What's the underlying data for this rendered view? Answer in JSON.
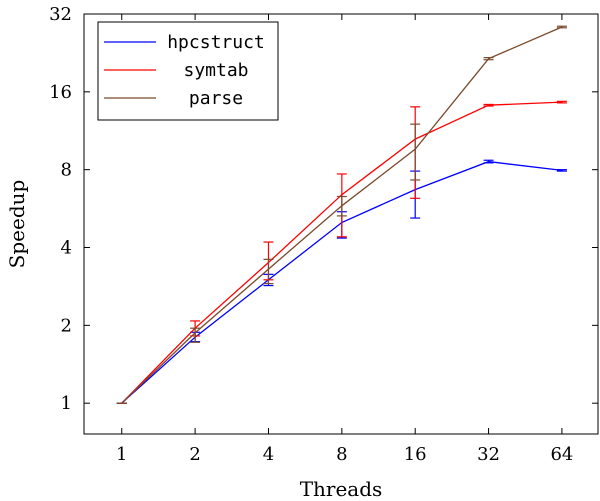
{
  "chart_data": {
    "type": "line",
    "xlabel": "Threads",
    "ylabel": "Speedup",
    "x": [
      1,
      2,
      4,
      8,
      16,
      32,
      64
    ],
    "x_tick_labels": [
      "1",
      "2",
      "4",
      "8",
      "16",
      "32",
      "64"
    ],
    "y_tick_values": [
      1,
      2,
      4,
      8,
      16,
      32
    ],
    "y_tick_labels": [
      "1",
      "2",
      "4",
      "8",
      "16",
      "32"
    ],
    "xscale": "log2",
    "yscale": "log2",
    "xlim": [
      0.7,
      90
    ],
    "ylim": [
      0.76,
      32
    ],
    "grid": false,
    "legend_position": "top-left",
    "series": [
      {
        "name": "hpcstruct",
        "color": "#0000ff",
        "values": [
          1.0,
          1.8,
          3.0,
          5.0,
          6.7,
          8.6,
          7.95
        ],
        "err_low": [
          1.0,
          1.73,
          2.85,
          4.35,
          5.2,
          8.5,
          7.9
        ],
        "err_high": [
          1.0,
          1.88,
          3.15,
          5.5,
          7.9,
          8.7,
          8.0
        ]
      },
      {
        "name": "symtab",
        "color": "#ff0000",
        "values": [
          1.0,
          1.95,
          3.5,
          6.4,
          10.5,
          14.2,
          14.6
        ],
        "err_low": [
          1.0,
          1.82,
          3.0,
          4.4,
          6.2,
          14.1,
          14.5
        ],
        "err_high": [
          1.0,
          2.08,
          4.2,
          7.7,
          14.0,
          14.3,
          14.7
        ]
      },
      {
        "name": "parse",
        "color": "#7a4a2c",
        "values": [
          1.0,
          1.87,
          3.3,
          5.8,
          9.6,
          21.5,
          28.5
        ],
        "err_low": [
          1.0,
          1.72,
          2.9,
          5.3,
          7.3,
          21.3,
          28.3
        ],
        "err_high": [
          1.0,
          1.95,
          3.6,
          6.3,
          12.0,
          21.7,
          28.7
        ]
      }
    ]
  }
}
